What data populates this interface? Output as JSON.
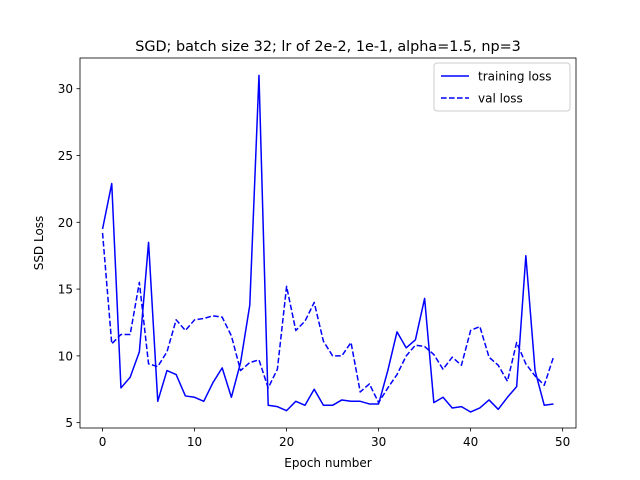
{
  "chart_data": {
    "type": "line",
    "title": "SGD; batch size 32; lr of 2e-2, 1e-1, alpha=1.5, np=3",
    "xlabel": "Epoch number",
    "ylabel": "SSD Loss",
    "xlim": [
      -2.45,
      51.45
    ],
    "ylim": [
      4.6,
      32.3
    ],
    "xticks": [
      0,
      10,
      20,
      30,
      40,
      50
    ],
    "yticks": [
      5,
      10,
      15,
      20,
      25,
      30
    ],
    "grid": false,
    "legend_position": "top-right",
    "x": [
      0,
      1,
      2,
      3,
      4,
      5,
      6,
      7,
      8,
      9,
      10,
      11,
      12,
      13,
      14,
      15,
      16,
      17,
      18,
      19,
      20,
      21,
      22,
      23,
      24,
      25,
      26,
      27,
      28,
      29,
      30,
      31,
      32,
      33,
      34,
      35,
      36,
      37,
      38,
      39,
      40,
      41,
      42,
      43,
      44,
      45,
      46,
      47,
      48,
      49
    ],
    "series": [
      {
        "name": "training loss",
        "style": "solid",
        "color": "#0000ff",
        "values": [
          19.5,
          22.9,
          7.6,
          8.4,
          10.3,
          18.5,
          6.6,
          8.9,
          8.6,
          7.0,
          6.9,
          6.6,
          8.0,
          9.1,
          6.9,
          9.5,
          13.8,
          31.0,
          6.3,
          6.2,
          5.9,
          6.6,
          6.3,
          7.5,
          6.3,
          6.3,
          6.7,
          6.6,
          6.6,
          6.4,
          6.4,
          8.9,
          11.8,
          10.6,
          11.2,
          14.3,
          6.5,
          6.9,
          6.1,
          6.2,
          5.8,
          6.1,
          6.7,
          6.0,
          6.9,
          7.7,
          17.5,
          8.9,
          6.3,
          6.4
        ]
      },
      {
        "name": "val loss",
        "style": "dashed",
        "color": "#0000ff",
        "values": [
          19.2,
          10.9,
          11.6,
          11.6,
          15.5,
          9.4,
          9.2,
          10.3,
          12.7,
          11.9,
          12.7,
          12.8,
          13.0,
          12.9,
          11.5,
          8.9,
          9.5,
          9.7,
          7.6,
          9.0,
          15.2,
          11.9,
          12.6,
          14.0,
          11.1,
          10.0,
          10.0,
          11.0,
          7.3,
          7.9,
          6.5,
          7.6,
          8.6,
          10.0,
          10.8,
          10.7,
          10.1,
          9.0,
          9.9,
          9.3,
          11.9,
          12.2,
          9.9,
          9.3,
          8.1,
          11.0,
          9.4,
          8.5,
          7.8,
          9.9
        ]
      }
    ]
  }
}
